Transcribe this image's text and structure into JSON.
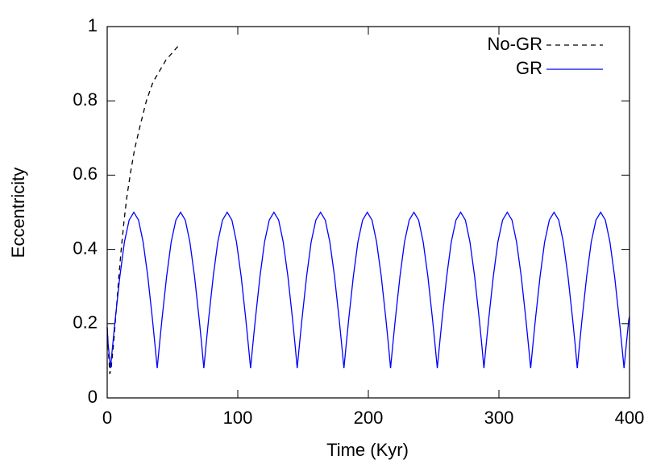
{
  "chart_data": {
    "type": "line",
    "xlabel": "Time (Kyr)",
    "ylabel": "Eccentricity",
    "xlim": [
      0,
      400
    ],
    "xticks": [
      0,
      100,
      200,
      300,
      400
    ],
    "ylim": [
      0,
      1
    ],
    "yticks": [
      0,
      0.2,
      0.4,
      0.6,
      0.8,
      1
    ],
    "legend": "upper right",
    "series": [
      {
        "name": "No-GR",
        "color": "#000000",
        "line_style": "dashed",
        "x": [
          0,
          1,
          2,
          3,
          5,
          7,
          9,
          11,
          13,
          15,
          18,
          21,
          25,
          30,
          35,
          40,
          45,
          50,
          55
        ],
        "values": [
          0.19,
          0.12,
          0.065,
          0.08,
          0.15,
          0.24,
          0.33,
          0.41,
          0.48,
          0.54,
          0.61,
          0.67,
          0.73,
          0.8,
          0.85,
          0.88,
          0.91,
          0.93,
          0.95
        ]
      },
      {
        "name": "GR",
        "color": "#0000ff",
        "line_style": "solid",
        "x": [
          0,
          0.7,
          2.5,
          4.3,
          6.1,
          9.7,
          13.2,
          16.8,
          20.4,
          24,
          27.5,
          31.1,
          34.7,
          36.5,
          38.3,
          40.1,
          41.9,
          45.5,
          49,
          52.6,
          56.2,
          59.8,
          63.3,
          66.9,
          70.5,
          72.3,
          74,
          75.8,
          77.6,
          81.2,
          84.7,
          88.3,
          91.9,
          95.5,
          99,
          102.6,
          106.2,
          108,
          109.8,
          111.6,
          113.4,
          117,
          120.5,
          124.1,
          127.7,
          131.3,
          134.8,
          138.4,
          142,
          143.8,
          145.5,
          147.3,
          149.1,
          152.7,
          156.2,
          159.8,
          163.4,
          167,
          170.5,
          174.1,
          177.7,
          179.5,
          181.3,
          183.1,
          184.9,
          188.5,
          192,
          195.6,
          199.2,
          202.8,
          206.3,
          209.9,
          213.5,
          215.3,
          217,
          218.8,
          220.6,
          224.2,
          227.7,
          231.3,
          234.9,
          238.5,
          242,
          245.6,
          249.2,
          251,
          252.8,
          254.6,
          256.4,
          260,
          263.5,
          267.1,
          270.7,
          274.3,
          277.8,
          281.4,
          285,
          286.8,
          288.5,
          290.3,
          292.1,
          295.7,
          299.2,
          302.8,
          306.4,
          310,
          313.5,
          317.1,
          320.7,
          322.5,
          324.3,
          326.1,
          327.9,
          331.5,
          335,
          338.6,
          342.2,
          345.8,
          349.3,
          352.9,
          356.5,
          358.3,
          360,
          361.8,
          363.6,
          367.2,
          370.7,
          374.3,
          377.9,
          381.5,
          385,
          388.6,
          392.2,
          394,
          395.8,
          397.6,
          399.4,
          400
        ],
        "values": [
          0.19,
          0.146,
          0.08,
          0.146,
          0.21,
          0.327,
          0.42,
          0.479,
          0.5,
          0.479,
          0.42,
          0.327,
          0.21,
          0.146,
          0.08,
          0.146,
          0.21,
          0.327,
          0.42,
          0.479,
          0.5,
          0.479,
          0.42,
          0.327,
          0.21,
          0.146,
          0.08,
          0.146,
          0.21,
          0.327,
          0.42,
          0.479,
          0.5,
          0.479,
          0.42,
          0.327,
          0.21,
          0.146,
          0.08,
          0.146,
          0.21,
          0.327,
          0.42,
          0.479,
          0.5,
          0.479,
          0.42,
          0.327,
          0.21,
          0.146,
          0.08,
          0.146,
          0.21,
          0.327,
          0.42,
          0.479,
          0.5,
          0.479,
          0.42,
          0.327,
          0.21,
          0.146,
          0.08,
          0.146,
          0.21,
          0.327,
          0.42,
          0.479,
          0.5,
          0.479,
          0.42,
          0.327,
          0.21,
          0.146,
          0.08,
          0.146,
          0.21,
          0.327,
          0.42,
          0.479,
          0.5,
          0.479,
          0.42,
          0.327,
          0.21,
          0.146,
          0.08,
          0.146,
          0.21,
          0.327,
          0.42,
          0.479,
          0.5,
          0.479,
          0.42,
          0.327,
          0.21,
          0.146,
          0.08,
          0.146,
          0.21,
          0.327,
          0.42,
          0.479,
          0.5,
          0.479,
          0.42,
          0.327,
          0.21,
          0.146,
          0.08,
          0.146,
          0.21,
          0.327,
          0.42,
          0.479,
          0.5,
          0.479,
          0.42,
          0.327,
          0.21,
          0.146,
          0.08,
          0.146,
          0.21,
          0.327,
          0.42,
          0.479,
          0.5,
          0.479,
          0.42,
          0.327,
          0.21,
          0.146,
          0.08,
          0.146,
          0.21,
          0.22
        ]
      }
    ]
  }
}
